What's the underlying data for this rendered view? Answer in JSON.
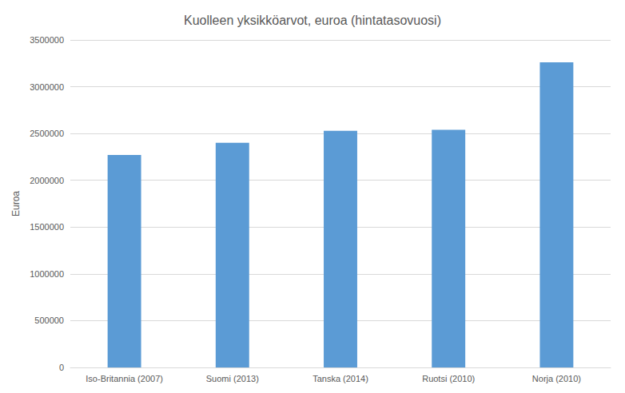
{
  "chart_data": {
    "type": "bar",
    "title": "Kuolleen yksikköarvot, euroa (hintatasovuosi)",
    "y_label": "Euroa",
    "categories": [
      "Iso-Britannia (2007)",
      "Suomi (2013)",
      "Tanska (2014)",
      "Ruotsi (2010)",
      "Norja (2010)"
    ],
    "values": [
      2270000,
      2400000,
      2530000,
      2540000,
      3260000
    ],
    "color": "#5b9bd5",
    "ylim": [
      0,
      3500000
    ],
    "yticks": [
      0,
      500000,
      1000000,
      1500000,
      2000000,
      2500000,
      3000000,
      3500000
    ],
    "grid": true
  }
}
